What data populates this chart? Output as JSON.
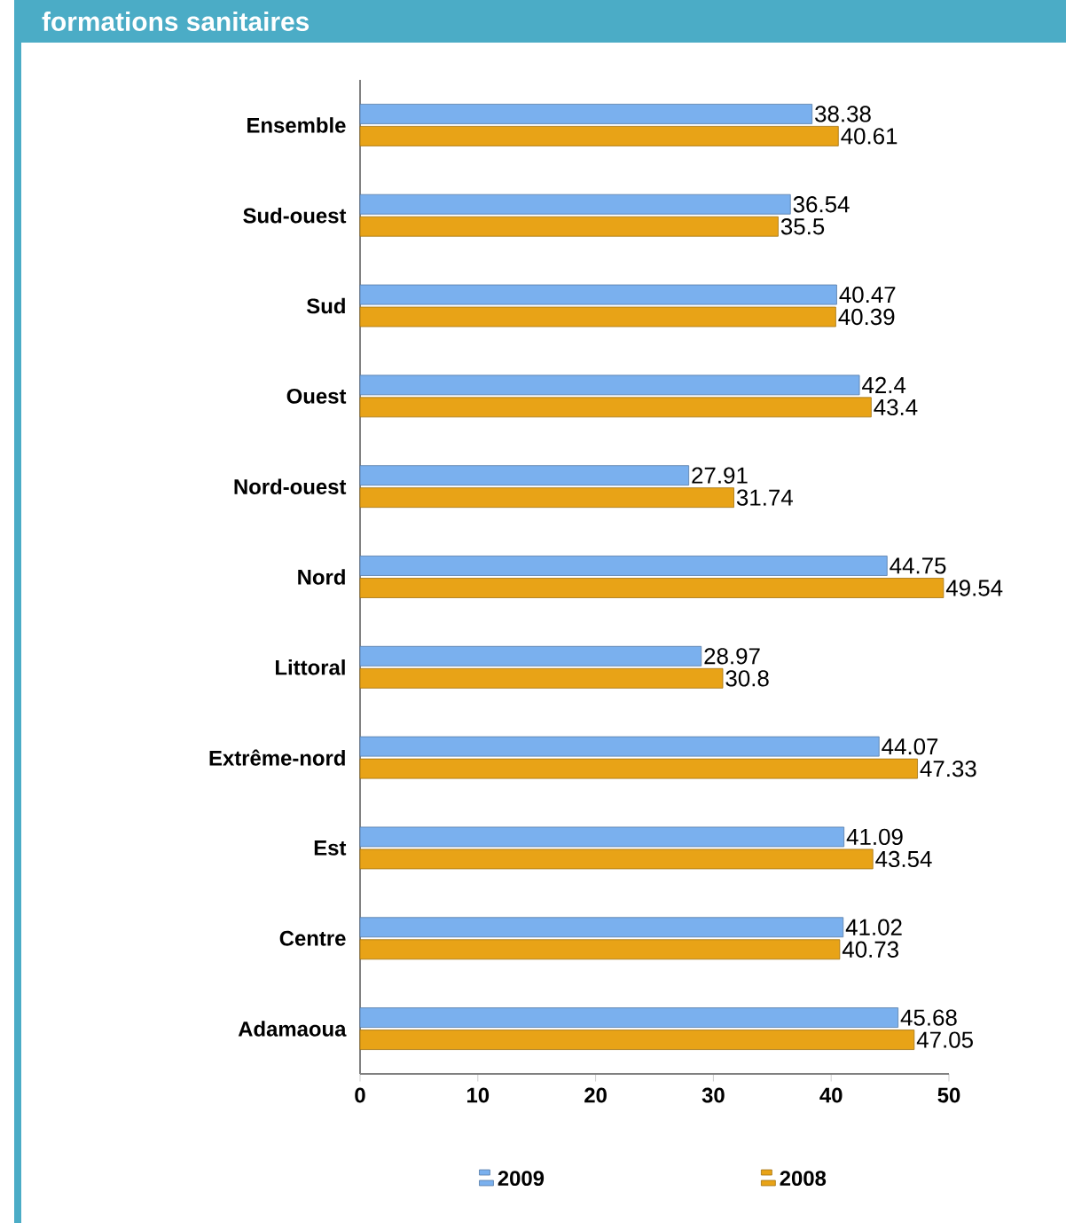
{
  "chart_data": {
    "type": "bar",
    "orientation": "horizontal",
    "title": "formations sanitaires",
    "categories": [
      "Ensemble",
      "Sud-ouest",
      "Sud",
      "Ouest",
      "Nord-ouest",
      "Nord",
      "Littoral",
      "Extrême-nord",
      "Est",
      "Centre",
      "Adamaoua"
    ],
    "series": [
      {
        "name": "2009",
        "color": "#7ab0ee",
        "values": [
          38.38,
          36.54,
          40.47,
          42.4,
          27.91,
          44.75,
          28.97,
          44.07,
          41.09,
          41.02,
          45.68
        ]
      },
      {
        "name": "2008",
        "color": "#e8a317",
        "values": [
          40.61,
          35.5,
          40.39,
          43.4,
          31.74,
          49.54,
          30.8,
          47.33,
          43.54,
          40.73,
          47.05
        ]
      }
    ],
    "xlim": [
      0,
      50
    ],
    "xticks": [
      0,
      10,
      20,
      30,
      40,
      50
    ],
    "data_labels": true,
    "legend": "bottom"
  }
}
